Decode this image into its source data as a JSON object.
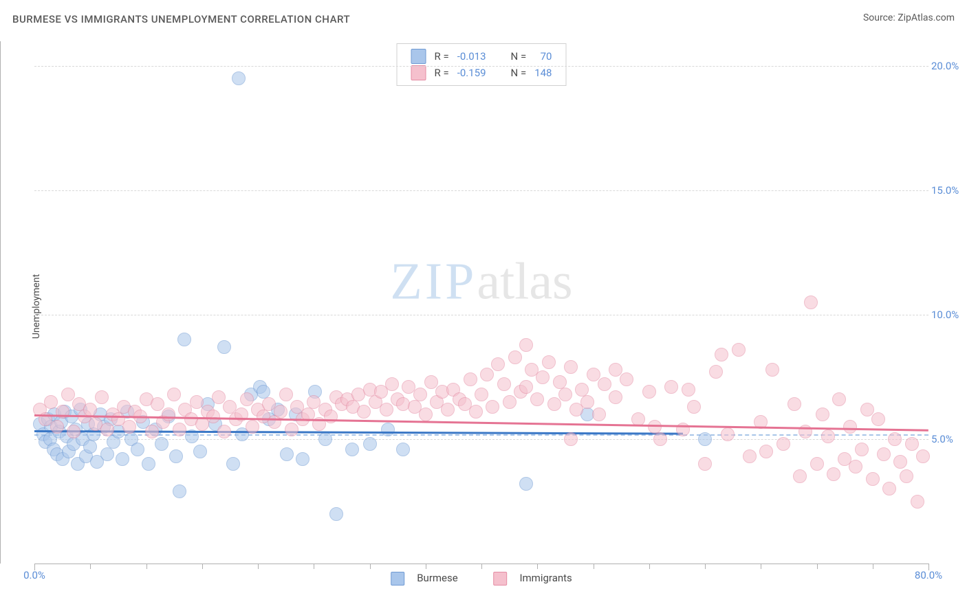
{
  "title": "BURMESE VS IMMIGRANTS UNEMPLOYMENT CORRELATION CHART",
  "source_prefix": "Source: ",
  "source_name": "ZipAtlas.com",
  "y_axis_label": "Unemployment",
  "watermark_part1": "ZIP",
  "watermark_part2": "atlas",
  "chart": {
    "type": "scatter",
    "background_color": "#ffffff",
    "grid_color": "#d8d8d8",
    "axis_color": "#b0b0b0",
    "tick_label_color": "#5a8dd6",
    "label_color": "#4a4a4a",
    "point_radius": 9,
    "point_opacity": 0.55,
    "xlim": [
      0,
      80
    ],
    "ylim": [
      0,
      21
    ],
    "x_ticks_major": [
      0,
      80
    ],
    "x_ticks_minor": [
      5,
      10,
      15,
      20,
      25,
      30,
      35,
      40,
      45,
      50,
      55,
      60,
      65,
      70,
      75
    ],
    "x_tick_labels": {
      "0": "0.0%",
      "80": "80.0%"
    },
    "y_ticks": [
      5,
      10,
      15,
      20
    ],
    "y_tick_labels": {
      "5": "5.0%",
      "10": "10.0%",
      "15": "15.0%",
      "20": "20.0%"
    },
    "reference_line_y": 5.2,
    "series": [
      {
        "id": "burmese",
        "label": "Burmese",
        "color_fill": "#a9c6eb",
        "color_stroke": "#6f9ad3",
        "swatch_fill": "#a9c6eb",
        "swatch_stroke": "#6f9ad3",
        "R": "-0.013",
        "N": "70",
        "trend": {
          "x1": 0,
          "y1": 5.35,
          "x2": 58,
          "y2": 5.25,
          "color": "#3b78c6"
        },
        "points": [
          [
            0.5,
            5.6
          ],
          [
            0.8,
            5.2
          ],
          [
            1.0,
            4.9
          ],
          [
            1.2,
            5.8
          ],
          [
            1.4,
            5.0
          ],
          [
            1.5,
            5.5
          ],
          [
            1.7,
            4.6
          ],
          [
            1.8,
            6.0
          ],
          [
            2.0,
            4.4
          ],
          [
            2.2,
            5.3
          ],
          [
            2.4,
            5.7
          ],
          [
            2.5,
            4.2
          ],
          [
            2.7,
            6.1
          ],
          [
            2.9,
            5.1
          ],
          [
            3.1,
            4.5
          ],
          [
            3.3,
            5.9
          ],
          [
            3.5,
            4.8
          ],
          [
            3.7,
            5.4
          ],
          [
            3.9,
            4.0
          ],
          [
            4.1,
            6.2
          ],
          [
            4.3,
            5.0
          ],
          [
            4.6,
            4.3
          ],
          [
            4.8,
            5.6
          ],
          [
            5.0,
            4.7
          ],
          [
            5.3,
            5.2
          ],
          [
            5.6,
            4.1
          ],
          [
            5.9,
            6.0
          ],
          [
            6.2,
            5.5
          ],
          [
            6.5,
            4.4
          ],
          [
            6.8,
            5.8
          ],
          [
            7.1,
            4.9
          ],
          [
            7.5,
            5.3
          ],
          [
            7.9,
            4.2
          ],
          [
            8.3,
            6.1
          ],
          [
            8.7,
            5.0
          ],
          [
            9.2,
            4.6
          ],
          [
            9.7,
            5.7
          ],
          [
            10.2,
            4.0
          ],
          [
            10.8,
            5.4
          ],
          [
            11.4,
            4.8
          ],
          [
            12.0,
            5.9
          ],
          [
            12.7,
            4.3
          ],
          [
            13.0,
            2.9
          ],
          [
            13.4,
            9.0
          ],
          [
            14.1,
            5.1
          ],
          [
            14.8,
            4.5
          ],
          [
            15.5,
            6.4
          ],
          [
            16.2,
            5.6
          ],
          [
            17.0,
            8.7
          ],
          [
            17.8,
            4.0
          ],
          [
            18.3,
            19.5
          ],
          [
            18.6,
            5.2
          ],
          [
            19.4,
            6.8
          ],
          [
            20.2,
            7.1
          ],
          [
            20.5,
            6.9
          ],
          [
            21.0,
            5.8
          ],
          [
            21.8,
            6.2
          ],
          [
            22.6,
            4.4
          ],
          [
            23.4,
            6.0
          ],
          [
            24.0,
            4.2
          ],
          [
            25.1,
            6.9
          ],
          [
            26.0,
            5.0
          ],
          [
            27.0,
            2.0
          ],
          [
            28.4,
            4.6
          ],
          [
            30.0,
            4.8
          ],
          [
            31.6,
            5.4
          ],
          [
            33.0,
            4.6
          ],
          [
            44.0,
            3.2
          ],
          [
            49.5,
            6.0
          ],
          [
            60.0,
            5.0
          ]
        ]
      },
      {
        "id": "immigrants",
        "label": "Immigrants",
        "color_fill": "#f5c0cd",
        "color_stroke": "#e48ba3",
        "swatch_fill": "#f5c0cd",
        "swatch_stroke": "#e48ba3",
        "R": "-0.159",
        "N": "148",
        "trend": {
          "x1": 0,
          "y1": 6.0,
          "x2": 80,
          "y2": 5.4,
          "color": "#e57393"
        },
        "points": [
          [
            0.5,
            6.2
          ],
          [
            1.0,
            5.8
          ],
          [
            1.5,
            6.5
          ],
          [
            2.0,
            5.5
          ],
          [
            2.5,
            6.1
          ],
          [
            3.0,
            6.8
          ],
          [
            3.5,
            5.3
          ],
          [
            4.0,
            6.4
          ],
          [
            4.5,
            5.9
          ],
          [
            5.0,
            6.2
          ],
          [
            5.5,
            5.6
          ],
          [
            6.0,
            6.7
          ],
          [
            6.5,
            5.4
          ],
          [
            7.0,
            6.0
          ],
          [
            7.5,
            5.8
          ],
          [
            8.0,
            6.3
          ],
          [
            8.5,
            5.5
          ],
          [
            9.0,
            6.1
          ],
          [
            9.5,
            5.9
          ],
          [
            10.0,
            6.6
          ],
          [
            10.5,
            5.3
          ],
          [
            11.0,
            6.4
          ],
          [
            11.5,
            5.7
          ],
          [
            12.0,
            6.0
          ],
          [
            12.5,
            6.8
          ],
          [
            13.0,
            5.4
          ],
          [
            13.5,
            6.2
          ],
          [
            14.0,
            5.8
          ],
          [
            14.5,
            6.5
          ],
          [
            15.0,
            5.6
          ],
          [
            15.5,
            6.1
          ],
          [
            16.0,
            5.9
          ],
          [
            16.5,
            6.7
          ],
          [
            17.0,
            5.3
          ],
          [
            17.5,
            6.3
          ],
          [
            18.0,
            5.8
          ],
          [
            18.5,
            6.0
          ],
          [
            19.0,
            6.6
          ],
          [
            19.5,
            5.5
          ],
          [
            20.0,
            6.2
          ],
          [
            20.5,
            5.9
          ],
          [
            21.0,
            6.4
          ],
          [
            21.5,
            5.7
          ],
          [
            22.0,
            6.1
          ],
          [
            22.5,
            6.8
          ],
          [
            23.0,
            5.4
          ],
          [
            23.5,
            6.3
          ],
          [
            24.0,
            5.8
          ],
          [
            24.5,
            6.0
          ],
          [
            25.0,
            6.5
          ],
          [
            25.5,
            5.6
          ],
          [
            26.0,
            6.2
          ],
          [
            26.5,
            5.9
          ],
          [
            27.0,
            6.7
          ],
          [
            27.5,
            6.4
          ],
          [
            28.0,
            6.6
          ],
          [
            28.5,
            6.3
          ],
          [
            29.0,
            6.8
          ],
          [
            29.5,
            6.1
          ],
          [
            30.0,
            7.0
          ],
          [
            30.5,
            6.5
          ],
          [
            31.0,
            6.9
          ],
          [
            31.5,
            6.2
          ],
          [
            32.0,
            7.2
          ],
          [
            32.5,
            6.6
          ],
          [
            33.0,
            6.4
          ],
          [
            33.5,
            7.1
          ],
          [
            34.0,
            6.3
          ],
          [
            34.5,
            6.8
          ],
          [
            35.0,
            6.0
          ],
          [
            35.5,
            7.3
          ],
          [
            36.0,
            6.5
          ],
          [
            36.5,
            6.9
          ],
          [
            37.0,
            6.2
          ],
          [
            37.5,
            7.0
          ],
          [
            38.0,
            6.6
          ],
          [
            38.5,
            6.4
          ],
          [
            39.0,
            7.4
          ],
          [
            39.5,
            6.1
          ],
          [
            40.0,
            6.8
          ],
          [
            40.5,
            7.6
          ],
          [
            41.0,
            6.3
          ],
          [
            41.5,
            8.0
          ],
          [
            42.0,
            7.2
          ],
          [
            42.5,
            6.5
          ],
          [
            43.0,
            8.3
          ],
          [
            43.5,
            6.9
          ],
          [
            44.0,
            7.1
          ],
          [
            44.5,
            7.8
          ],
          [
            45.0,
            6.6
          ],
          [
            45.5,
            7.5
          ],
          [
            46.0,
            8.1
          ],
          [
            46.5,
            6.4
          ],
          [
            47.0,
            7.3
          ],
          [
            47.5,
            6.8
          ],
          [
            48.0,
            7.9
          ],
          [
            48.5,
            6.2
          ],
          [
            49.0,
            7.0
          ],
          [
            49.5,
            6.5
          ],
          [
            50.0,
            7.6
          ],
          [
            50.5,
            6.0
          ],
          [
            51.0,
            7.2
          ],
          [
            52.0,
            6.7
          ],
          [
            53.0,
            7.4
          ],
          [
            54.0,
            5.8
          ],
          [
            55.0,
            6.9
          ],
          [
            56.0,
            5.0
          ],
          [
            57.0,
            7.1
          ],
          [
            58.0,
            5.4
          ],
          [
            59.0,
            6.3
          ],
          [
            60.0,
            4.0
          ],
          [
            61.0,
            7.7
          ],
          [
            62.0,
            5.2
          ],
          [
            63.0,
            8.6
          ],
          [
            64.0,
            4.3
          ],
          [
            65.0,
            5.7
          ],
          [
            66.0,
            7.8
          ],
          [
            67.0,
            4.8
          ],
          [
            68.0,
            6.4
          ],
          [
            69.0,
            5.3
          ],
          [
            69.5,
            10.5
          ],
          [
            70.0,
            4.0
          ],
          [
            70.5,
            6.0
          ],
          [
            71.0,
            5.1
          ],
          [
            71.5,
            3.6
          ],
          [
            72.0,
            6.6
          ],
          [
            72.5,
            4.2
          ],
          [
            73.0,
            5.5
          ],
          [
            73.5,
            3.9
          ],
          [
            74.0,
            4.6
          ],
          [
            74.5,
            6.2
          ],
          [
            75.0,
            3.4
          ],
          [
            75.5,
            5.8
          ],
          [
            76.0,
            4.4
          ],
          [
            76.5,
            3.0
          ],
          [
            77.0,
            5.0
          ],
          [
            77.5,
            4.1
          ],
          [
            78.0,
            3.5
          ],
          [
            78.5,
            4.8
          ],
          [
            79.0,
            2.5
          ],
          [
            79.5,
            4.3
          ],
          [
            44.0,
            8.8
          ],
          [
            48.0,
            5.0
          ],
          [
            52.0,
            7.8
          ],
          [
            55.5,
            5.5
          ],
          [
            58.5,
            7.0
          ],
          [
            61.5,
            8.4
          ],
          [
            65.5,
            4.5
          ],
          [
            68.5,
            3.5
          ]
        ]
      }
    ]
  },
  "legend_top": {
    "R_label": "R =",
    "N_label": "N ="
  }
}
